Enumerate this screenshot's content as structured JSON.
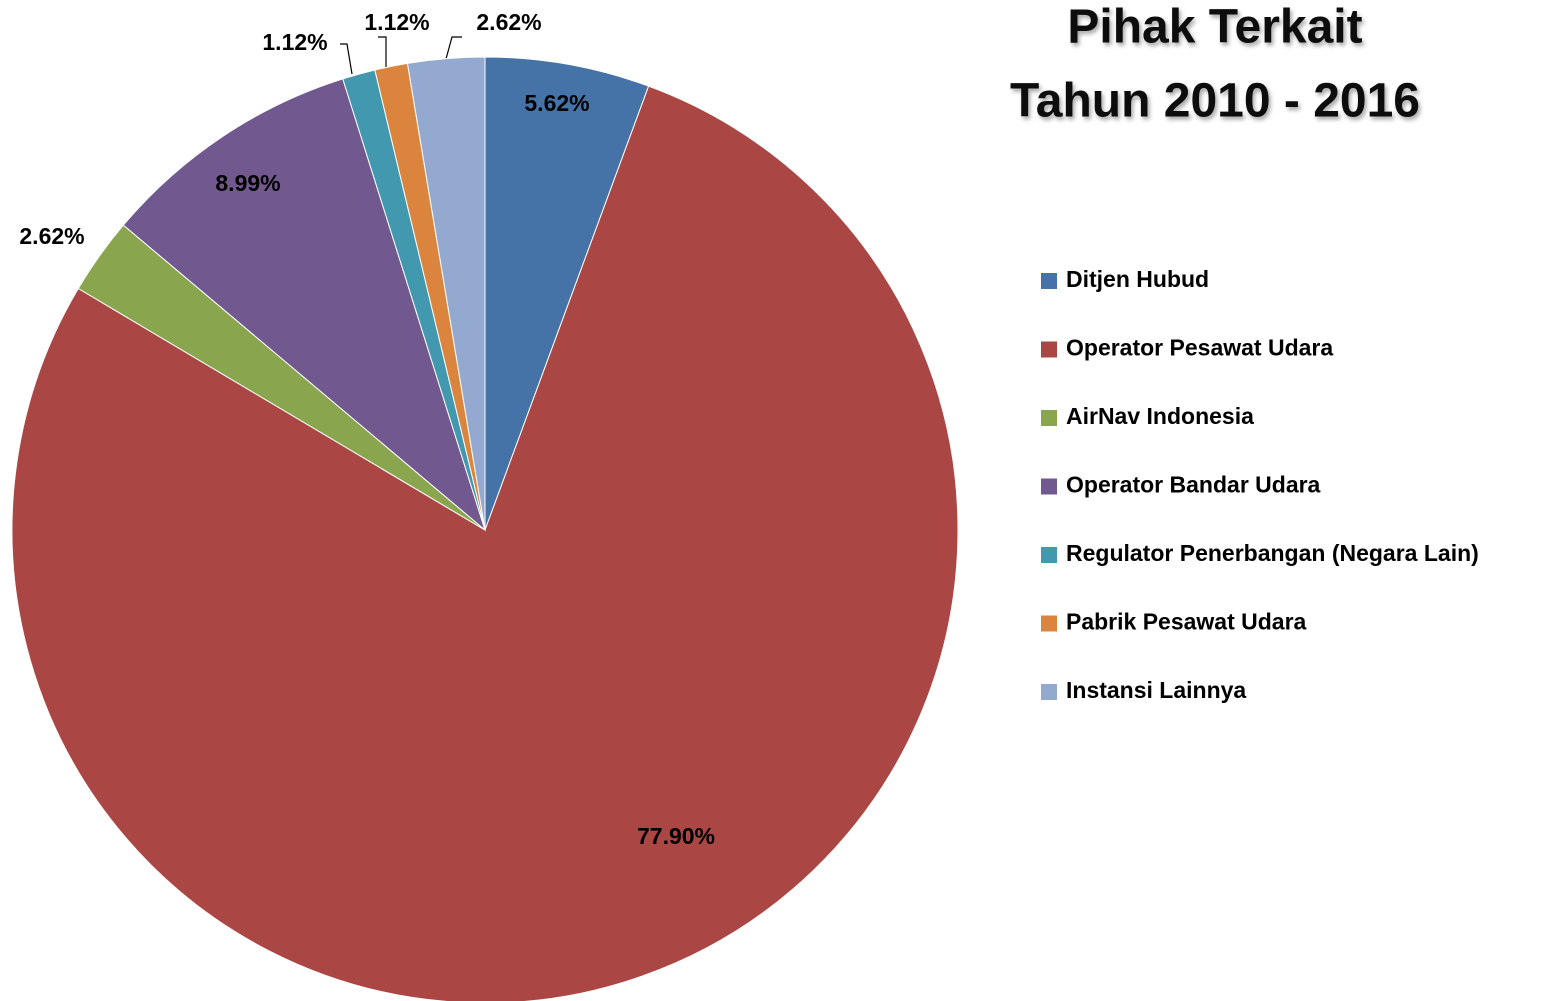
{
  "chart_data": {
    "type": "pie",
    "title": [
      "Pihak Terkait",
      "Tahun 2010 - 2016"
    ],
    "categories": [
      "Ditjen Hubud",
      "Operator Pesawat Udara",
      "AirNav Indonesia",
      "Operator Bandar Udara",
      "Regulator Penerbangan (Negara Lain)",
      "Pabrik Pesawat Udara",
      "Instansi Lainnya"
    ],
    "values": [
      5.62,
      77.9,
      2.62,
      8.99,
      1.12,
      1.12,
      2.62
    ],
    "value_labels": [
      "5.62%",
      "77.90%",
      "2.62%",
      "8.99%",
      "1.12%",
      "1.12%",
      "2.62%"
    ],
    "colors": [
      "#4572a7",
      "#aa4643",
      "#89a54e",
      "#71588f",
      "#4198af",
      "#db843d",
      "#93a9cf"
    ],
    "legend": "right"
  }
}
